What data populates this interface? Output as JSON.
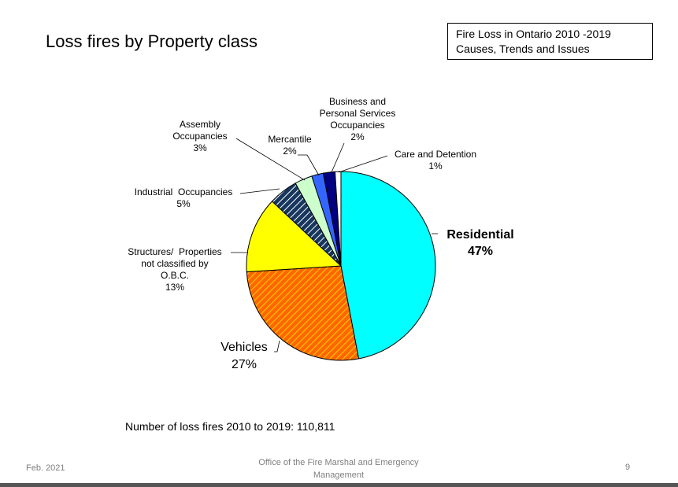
{
  "slide": {
    "title": "Loss fires by Property class",
    "ref_line1": "Fire Loss in Ontario  2010 -2019",
    "ref_line2": "Causes, Trends and Issues",
    "total_label": "Number of loss fires 2010 to 2019:  110,811",
    "footer_date": "Feb. 2021",
    "footer_org_line1": "Office of the Fire Marshal and Emergency",
    "footer_org_line2": "Management",
    "page_number": "9"
  },
  "chart_data": {
    "type": "pie",
    "title": "",
    "slices": [
      {
        "label": "Residential",
        "value": 47,
        "pct_label": "47%",
        "color": "#00ffff",
        "pattern": "solid"
      },
      {
        "label": "Vehicles",
        "value": 27,
        "pct_label": "27%",
        "color": "#ff6600",
        "pattern": "hatch-red"
      },
      {
        "label": "Structures/ Properties not classified by O.B.C.",
        "value": 13,
        "pct_label": "13%",
        "color": "#ffff00",
        "pattern": "solid"
      },
      {
        "label": "Industrial  Occupancies",
        "value": 5,
        "pct_label": "5%",
        "color": "#17375e",
        "pattern": "hatch-white"
      },
      {
        "label": "Assembly Occupancies",
        "value": 3,
        "pct_label": "3%",
        "color": "#ccffcc",
        "pattern": "solid"
      },
      {
        "label": "Mercantile",
        "value": 2,
        "pct_label": "2%",
        "color": "#3366ff",
        "pattern": "solid"
      },
      {
        "label": "Business and Personal Services Occupancies",
        "value": 2,
        "pct_label": "2%",
        "color": "#000080",
        "pattern": "solid"
      },
      {
        "label": "Care and Detention",
        "value": 1,
        "pct_label": "1%",
        "color": "#ffffff",
        "pattern": "solid"
      }
    ],
    "label_lines": {
      "residential": [
        "Residential",
        "47%"
      ],
      "vehicles": [
        "Vehicles",
        "27%"
      ],
      "structures": [
        "Structures/  Properties",
        "not classified by",
        "O.B.C.",
        "13%"
      ],
      "industrial": [
        "Industrial  Occupancies",
        "5%"
      ],
      "assembly": [
        "Assembly",
        "Occupancies",
        "3%"
      ],
      "mercantile": [
        "Mercantile",
        "2%"
      ],
      "business": [
        "Business and",
        "Personal Services",
        "Occupancies",
        "2%"
      ],
      "care": [
        "Care and Detention",
        "1%"
      ]
    }
  }
}
